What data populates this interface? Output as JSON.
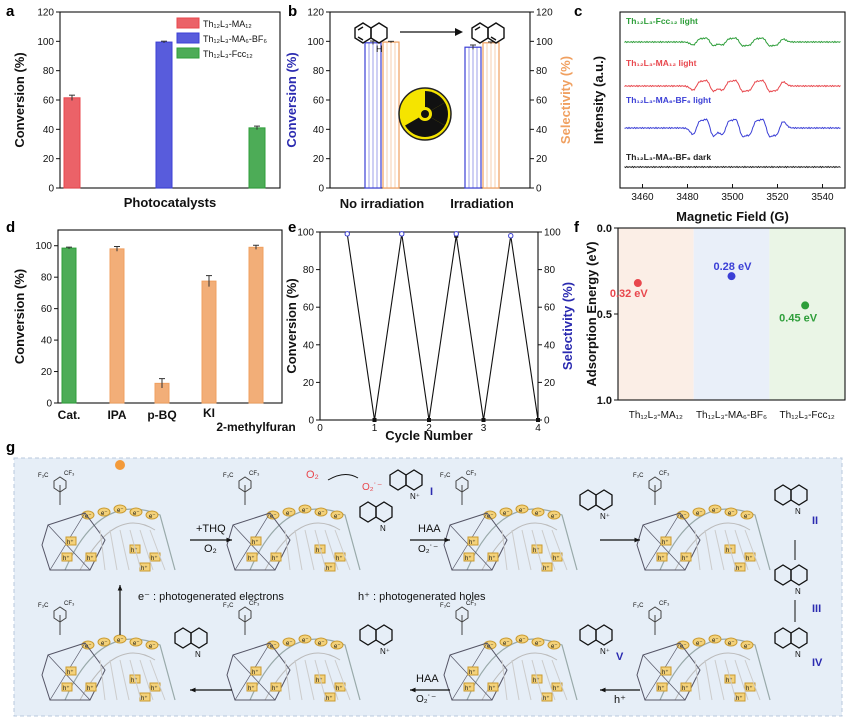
{
  "panels": {
    "a": "a",
    "b": "b",
    "c": "c",
    "d": "d",
    "e": "e",
    "f": "f",
    "g": "g"
  },
  "colors": {
    "red": "#e8474d",
    "blue": "#3b3fd6",
    "green": "#2e9e3a",
    "orange": "#f0a060",
    "navy": "#2a2ab0",
    "black": "#222222"
  },
  "chart_data": [
    {
      "id": "a",
      "type": "bar",
      "categories": [
        "Th12L3-MA12",
        "Th12L3-MA6-BF6",
        "Th12L3-Fcc12"
      ],
      "legend": [
        "Th₁₂L₃-MA₁₂",
        "Th₁₂L₃-MA₆-BF₆",
        "Th₁₂L₃-Fcc₁₂"
      ],
      "values": [
        61.5,
        99.5,
        41
      ],
      "errors": [
        1.8,
        0.6,
        1.2
      ],
      "xlabel": "Photocatalysts",
      "ylabel": "Conversion (%)",
      "ylim": [
        0,
        120
      ],
      "yticks": [
        0,
        20,
        40,
        60,
        80,
        100,
        120
      ]
    },
    {
      "id": "b",
      "type": "bar",
      "categories": [
        "No irradiation",
        "Irradiation"
      ],
      "series": [
        {
          "values": [
            99,
            96
          ]
        },
        {
          "values": [
            99.5,
            99
          ]
        }
      ],
      "errors": [
        [
          1.2,
          1.5
        ],
        [
          0.5,
          0.6
        ]
      ],
      "ylabel": "Conversion (%)",
      "ylabel2": "Selectivity (%)",
      "ylim": [
        0,
        120
      ],
      "yticks": [
        0,
        20,
        40,
        60,
        80,
        100,
        120
      ]
    },
    {
      "id": "c",
      "type": "line",
      "xlabel": "Magnetic Field (G)",
      "ylabel": "Intensity (a.u.)",
      "xlim": [
        3450,
        3550
      ],
      "xticks": [
        3460,
        3480,
        3500,
        3520,
        3540
      ],
      "traces": [
        {
          "name": "Th₁₂L₃-Fcc₁₂ light",
          "offset": 3,
          "amp": 0.5
        },
        {
          "name": "Th₁₂L₃-MA₁₂ light",
          "offset": 2,
          "amp": 0.7
        },
        {
          "name": "Th₁₂L₃-MA₆-BF₆ light",
          "offset": 1,
          "amp": 1.1
        },
        {
          "name": "Th₁₂L₃-MA₆-BF₆ dark",
          "offset": 0,
          "amp": 0
        }
      ]
    },
    {
      "id": "d",
      "type": "bar",
      "categories": [
        "Cat.",
        "IPA",
        "p-BQ",
        "KI",
        "2-methylfuran"
      ],
      "values": [
        98.5,
        98,
        12.5,
        77.5,
        99
      ],
      "errors": [
        0.6,
        1.5,
        3,
        3.5,
        1.3
      ],
      "ylabel": "Conversion (%)",
      "ylim": [
        0,
        110
      ],
      "yticks": [
        0,
        20,
        40,
        60,
        80,
        100
      ]
    },
    {
      "id": "e",
      "type": "line",
      "x": [
        0.5,
        1,
        1.5,
        2,
        2.5,
        3,
        3.5,
        4
      ],
      "conversion": [
        99,
        0,
        99,
        0,
        98,
        0,
        98,
        0
      ],
      "selectivity": [
        99,
        99,
        99,
        98
      ],
      "xlabel": "Cycle Number",
      "ylabel": "Conversion (%)",
      "ylabel2": "Selectivity (%)",
      "xlim": [
        0,
        4
      ],
      "xticks": [
        0,
        1,
        2,
        3,
        4
      ],
      "ylim": [
        0,
        100
      ],
      "yticks": [
        0,
        20,
        40,
        60,
        80,
        100
      ]
    },
    {
      "id": "f",
      "type": "scatter",
      "categories": [
        "Th₁₂L₃-MA₁₂",
        "Th₁₂L₃-MA₆-BF₆",
        "Th₁₂L₃-Fcc₁₂"
      ],
      "values": [
        0.32,
        0.28,
        0.45
      ],
      "labels": [
        "0.32 eV",
        "0.28 eV",
        "0.45 eV"
      ],
      "ylabel": "Adsorption Energy (eV)",
      "ylim": [
        0,
        1
      ],
      "yticks": [
        "0.0",
        "0.5",
        "1.0"
      ]
    }
  ],
  "scheme": {
    "thq_plus": "+THQ",
    "o2": "O₂",
    "o2_rad": "O₂˙⁻",
    "haa": "HAA",
    "h_plus": "h⁺",
    "e_minus": "e⁻",
    "ids": [
      "I",
      "II",
      "III",
      "IV",
      "V"
    ],
    "legend_e": "e⁻ : photogenerated electrons",
    "legend_h": "h⁺ : photogenerated holes",
    "nh": "N",
    "h": "H"
  }
}
